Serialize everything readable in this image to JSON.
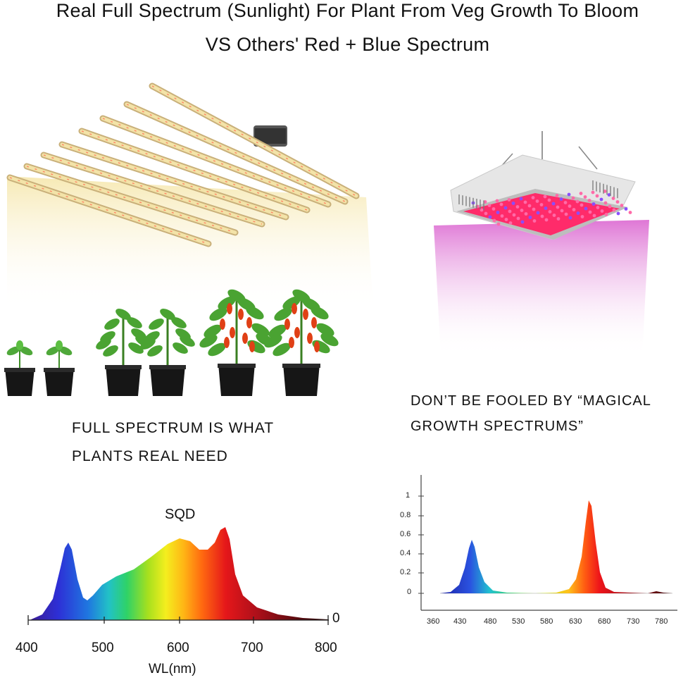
{
  "heading": {
    "line1": "Real Full Spectrum (Sunlight) For Plant From Veg Growth To Bloom",
    "line2": "VS Others' Red + Blue Spectrum"
  },
  "left_panel": {
    "caption_line1": "FULL SPECTRUM IS WHAT",
    "caption_line2": "PLANTS REAL NEED",
    "spectrum_label": "SQD",
    "x_ticks": [
      "400",
      "500",
      "600",
      "700",
      "800"
    ],
    "x_axis_label": "WL(nm)",
    "zero_label": "0",
    "light_color": "#f7ecb8"
  },
  "right_panel": {
    "caption_line1": "DON’T BE FOOLED BY “MAGICAL",
    "caption_line2": "GROWTH SPECTRUMS”",
    "y_ticks": [
      "1",
      "0.8",
      "0.6",
      "0.4",
      "0.2",
      "0"
    ],
    "x_ticks": [
      "360",
      "430",
      "480",
      "530",
      "580",
      "630",
      "680",
      "730",
      "780"
    ],
    "light_color": "#e27ad7",
    "led_color": "#ff2b6a"
  }
}
